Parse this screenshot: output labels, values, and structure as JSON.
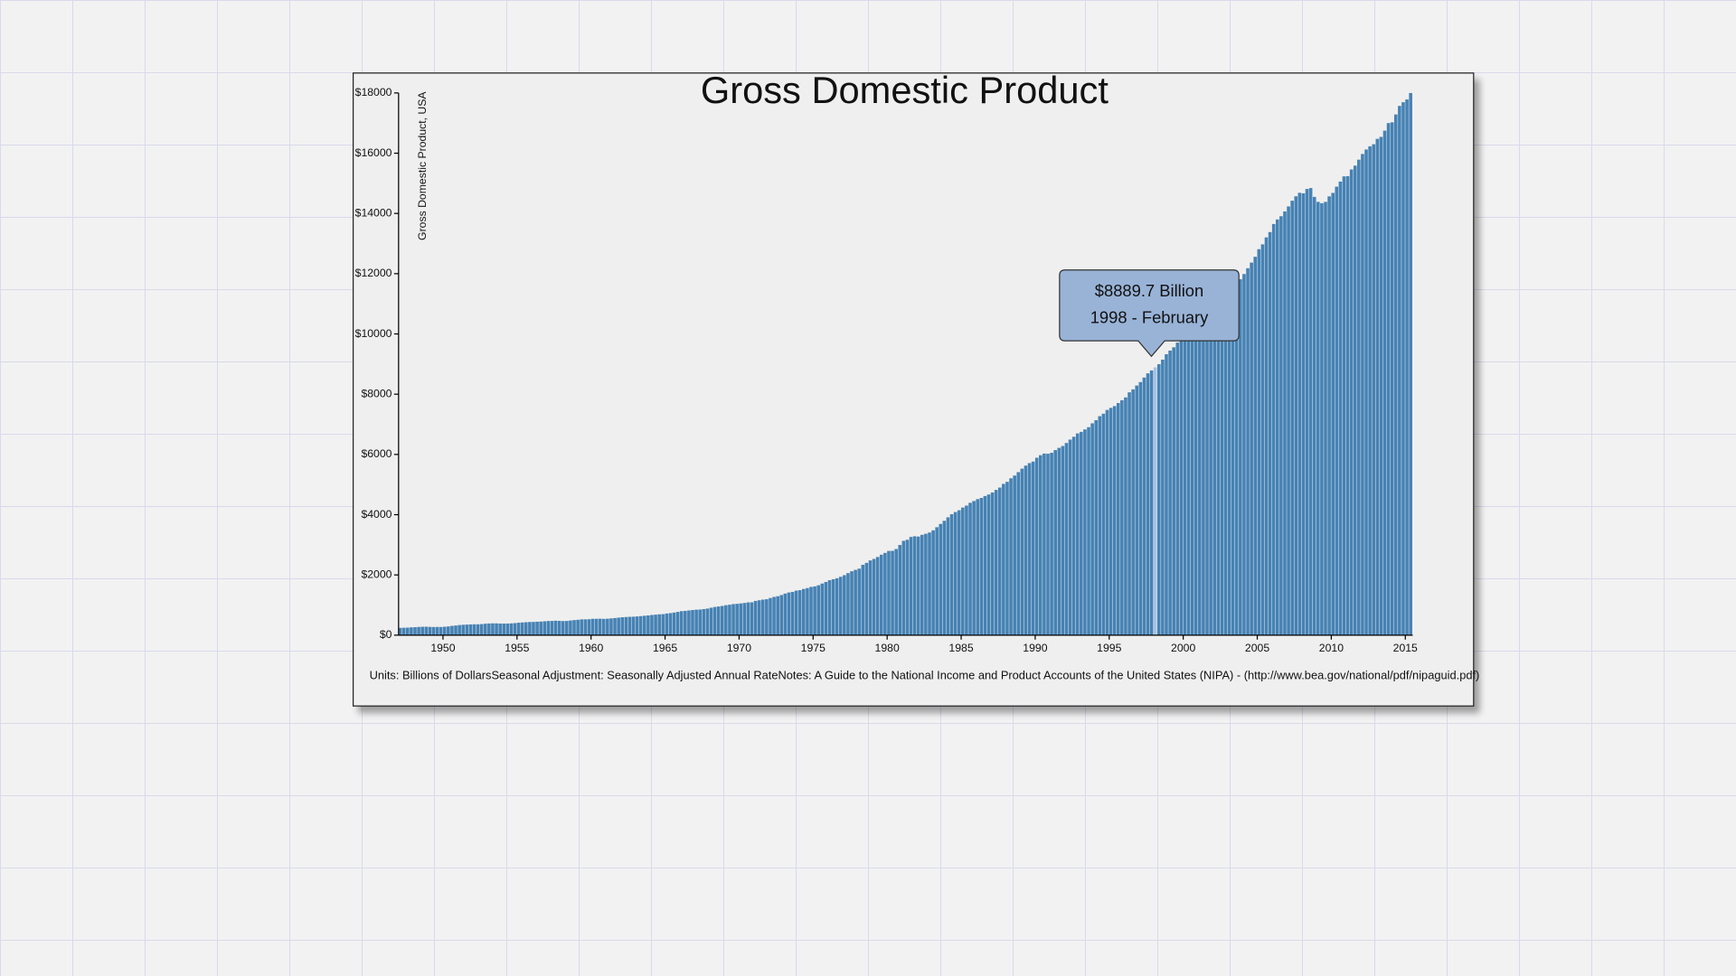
{
  "chart_data": {
    "type": "bar",
    "title": "Gross Domestic Product",
    "y_label": "Gross Domestic Product, USA",
    "footnote": "Units: Billions of DollarsSeasonal Adjustment: Seasonally Adjusted Annual RateNotes: A Guide to the National Income and Product Accounts of the United States (NIPA) - (http://www.bea.gov/national/pdf/nipaguid.pdf)",
    "color": "#4682b4",
    "highlight": {
      "x": 1998,
      "color": "#a8c2e2"
    },
    "tooltip": [
      "$8889.7 Billion",
      "1998 - February"
    ],
    "xlim": [
      1947,
      2015.5
    ],
    "xticks": [
      1950,
      1955,
      1960,
      1965,
      1970,
      1975,
      1980,
      1985,
      1990,
      1995,
      2000,
      2005,
      2010,
      2015
    ],
    "ylim": [
      0,
      18000
    ],
    "yticks": [
      {
        "value": 0,
        "label": "$0"
      },
      {
        "value": 2000,
        "label": "$2000"
      },
      {
        "value": 4000,
        "label": "$4000"
      },
      {
        "value": 6000,
        "label": "$6000"
      },
      {
        "value": 8000,
        "label": "$8000"
      },
      {
        "value": 10000,
        "label": "$10000"
      },
      {
        "value": 12000,
        "label": "$12000"
      },
      {
        "value": 14000,
        "label": "$14000"
      },
      {
        "value": 16000,
        "label": "$16000"
      },
      {
        "value": 18000,
        "label": "$18000"
      }
    ],
    "x": [
      1947,
      1947.25,
      1947.5,
      1947.75,
      1948,
      1948.25,
      1948.5,
      1948.75,
      1949,
      1949.25,
      1949.5,
      1949.75,
      1950,
      1950.25,
      1950.5,
      1950.75,
      1951,
      1951.25,
      1951.5,
      1951.75,
      1952,
      1952.25,
      1952.5,
      1952.75,
      1953,
      1953.25,
      1953.5,
      1953.75,
      1954,
      1954.25,
      1954.5,
      1954.75,
      1955,
      1955.25,
      1955.5,
      1955.75,
      1956,
      1956.25,
      1956.5,
      1956.75,
      1957,
      1957.25,
      1957.5,
      1957.75,
      1958,
      1958.25,
      1958.5,
      1958.75,
      1959,
      1959.25,
      1959.5,
      1959.75,
      1960,
      1960.25,
      1960.5,
      1960.75,
      1961,
      1961.25,
      1961.5,
      1961.75,
      1962,
      1962.25,
      1962.5,
      1962.75,
      1963,
      1963.25,
      1963.5,
      1963.75,
      1964,
      1964.25,
      1964.5,
      1964.75,
      1965,
      1965.25,
      1965.5,
      1965.75,
      1966,
      1966.25,
      1966.5,
      1966.75,
      1967,
      1967.25,
      1967.5,
      1967.75,
      1968,
      1968.25,
      1968.5,
      1968.75,
      1969,
      1969.25,
      1969.5,
      1969.75,
      1970,
      1970.25,
      1970.5,
      1970.75,
      1971,
      1971.25,
      1971.5,
      1971.75,
      1972,
      1972.25,
      1972.5,
      1972.75,
      1973,
      1973.25,
      1973.5,
      1973.75,
      1974,
      1974.25,
      1974.5,
      1974.75,
      1975,
      1975.25,
      1975.5,
      1975.75,
      1976,
      1976.25,
      1976.5,
      1976.75,
      1977,
      1977.25,
      1977.5,
      1977.75,
      1978,
      1978.25,
      1978.5,
      1978.75,
      1979,
      1979.25,
      1979.5,
      1979.75,
      1980,
      1980.25,
      1980.5,
      1980.75,
      1981,
      1981.25,
      1981.5,
      1981.75,
      1982,
      1982.25,
      1982.5,
      1982.75,
      1983,
      1983.25,
      1983.5,
      1983.75,
      1984,
      1984.25,
      1984.5,
      1984.75,
      1985,
      1985.25,
      1985.5,
      1985.75,
      1986,
      1986.25,
      1986.5,
      1986.75,
      1987,
      1987.25,
      1987.5,
      1987.75,
      1988,
      1988.25,
      1988.5,
      1988.75,
      1989,
      1989.25,
      1989.5,
      1989.75,
      1990,
      1990.25,
      1990.5,
      1990.75,
      1991,
      1991.25,
      1991.5,
      1991.75,
      1992,
      1992.25,
      1992.5,
      1992.75,
      1993,
      1993.25,
      1993.5,
      1993.75,
      1994,
      1994.25,
      1994.5,
      1994.75,
      1995,
      1995.25,
      1995.5,
      1995.75,
      1996,
      1996.25,
      1996.5,
      1996.75,
      1997,
      1997.25,
      1997.5,
      1997.75,
      1998,
      1998.25,
      1998.5,
      1998.75,
      1999,
      1999.25,
      1999.5,
      1999.75,
      2000,
      2000.25,
      2000.5,
      2000.75,
      2001,
      2001.25,
      2001.5,
      2001.75,
      2002,
      2002.25,
      2002.5,
      2002.75,
      2003,
      2003.25,
      2003.5,
      2003.75,
      2004,
      2004.25,
      2004.5,
      2004.75,
      2005,
      2005.25,
      2005.5,
      2005.75,
      2006,
      2006.25,
      2006.5,
      2006.75,
      2007,
      2007.25,
      2007.5,
      2007.75,
      2008,
      2008.25,
      2008.5,
      2008.75,
      2009,
      2009.25,
      2009.5,
      2009.75,
      2010,
      2010.25,
      2010.5,
      2010.75,
      2011,
      2011.25,
      2011.5,
      2011.75,
      2012,
      2012.25,
      2012.5,
      2012.75,
      2013,
      2013.25,
      2013.5,
      2013.75,
      2014,
      2014.25,
      2014.5,
      2014.75,
      2015,
      2015.25
    ],
    "values": [
      243.1,
      246.3,
      250.1,
      260.3,
      266.2,
      272.6,
      279.2,
      280.4,
      275.0,
      271.4,
      272.9,
      270.6,
      280.8,
      290.4,
      308.5,
      320.3,
      336.4,
      344.5,
      351.8,
      356.6,
      360.2,
      361.4,
      368.1,
      381.2,
      388.5,
      392.3,
      391.7,
      386.5,
      385.9,
      386.7,
      391.6,
      400.3,
      413.8,
      422.2,
      430.9,
      437.8,
      440.5,
      446.8,
      452.0,
      461.3,
      470.6,
      472.8,
      480.3,
      475.7,
      468.4,
      472.8,
      486.7,
      500.4,
      511.1,
      524.2,
      525.2,
      529.3,
      543.3,
      542.7,
      546.0,
      541.1,
      545.9,
      557.4,
      568.2,
      581.6,
      595.2,
      602.6,
      609.6,
      613.1,
      622.7,
      631.8,
      645.0,
      654.8,
      671.1,
      680.8,
      692.8,
      698.4,
      719.2,
      732.4,
      750.2,
      773.1,
      797.3,
      807.2,
      820.8,
      834.9,
      846.0,
      851.1,
      866.6,
      883.2,
      911.1,
      936.3,
      952.3,
      970.1,
      995.4,
      1011.4,
      1032.0,
      1040.7,
      1053.5,
      1070.1,
      1088.5,
      1091.5,
      1137.8,
      1159.4,
      1180.3,
      1193.6,
      1233.8,
      1270.1,
      1293.8,
      1332.0,
      1380.7,
      1417.6,
      1436.8,
      1479.1,
      1494.7,
      1534.2,
      1563.4,
      1603.0,
      1619.6,
      1656.4,
      1713.8,
      1765.9,
      1824.5,
      1856.9,
      1890.5,
      1938.4,
      1992.5,
      2060.2,
      2122.4,
      2168.7,
      2208.7,
      2336.6,
      2398.9,
      2482.2,
      2531.6,
      2595.9,
      2670.4,
      2730.7,
      2796.5,
      2799.9,
      2860.0,
      2993.5,
      3131.8,
      3167.3,
      3261.2,
      3283.5,
      3273.8,
      3331.3,
      3367.1,
      3407.8,
      3480.3,
      3583.8,
      3692.3,
      3796.1,
      3912.8,
      4015.0,
      4087.4,
      4147.6,
      4237.0,
      4302.3,
      4394.6,
      4453.1,
      4516.3,
      4555.2,
      4619.6,
      4669.4,
      4736.2,
      4821.5,
      4900.5,
      5022.7,
      5090.6,
      5207.7,
      5299.5,
      5412.7,
      5527.4,
      5628.4,
      5711.6,
      5763.4,
      5890.8,
      5974.7,
      6029.5,
      6023.3,
      6054.9,
      6143.6,
      6218.4,
      6279.3,
      6380.8,
      6492.3,
      6586.5,
      6697.6,
      6748.2,
      6829.6,
      6904.2,
      7032.8,
      7136.3,
      7269.8,
      7352.3,
      7476.7,
      7545.3,
      7604.9,
      7706.5,
      7799.5,
      7893.1,
      8061.5,
      8159.0,
      8287.1,
      8402.1,
      8551.9,
      8691.8,
      8788.3,
      8889.7,
      8994.7,
      9146.5,
      9325.7,
      9447.1,
      9557.0,
      9712.3,
      9926.1,
      10031.0,
      10278.3,
      10357.4,
      10472.3,
      10508.1,
      10638.4,
      10639.5,
      10701.3,
      10834.4,
      10934.8,
      11037.1,
      11103.8,
      11230.1,
      11370.7,
      11625.1,
      11816.8,
      11988.4,
      12181.4,
      12367.7,
      12562.2,
      12813.7,
      12974.1,
      13205.4,
      13381.6,
      13648.9,
      13799.8,
      13908.5,
      14066.4,
      14233.2,
      14422.3,
      14569.7,
      14685.3,
      14668.4,
      14813.0,
      14843.0,
      14549.9,
      14383.9,
      14340.4,
      14384.1,
      14566.5,
      14681.1,
      14888.6,
      15057.7,
      15230.2,
      15238.4,
      15460.9,
      15587.1,
      15785.3,
      15973.9,
      16121.9,
      16227.9,
      16297.3,
      16475.4,
      16541.4,
      16749.3,
      16999.9,
      17025.2,
      17285.6,
      17569.4,
      17692.2,
      17783.6,
      17998.3
    ]
  }
}
